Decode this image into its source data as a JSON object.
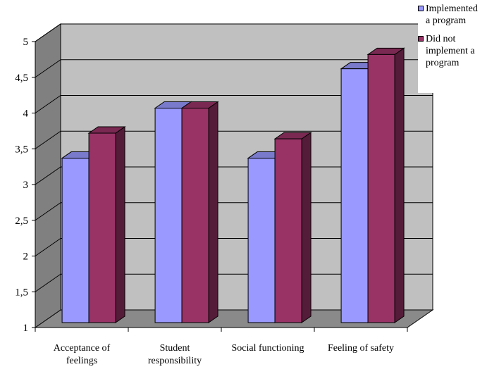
{
  "chart_data": {
    "type": "bar",
    "categories": [
      [
        "Acceptance of",
        "feelings"
      ],
      [
        "Student",
        "responsibility"
      ],
      [
        "Social functioning"
      ],
      [
        "Feeling of safety"
      ]
    ],
    "series": [
      {
        "name": "Implemented a program",
        "legend_lines": [
          "Implemented",
          "a program"
        ],
        "color": "#9999ff",
        "values": [
          3.3,
          4.0,
          3.3,
          4.55
        ]
      },
      {
        "name": "Did not implement a program",
        "legend_lines": [
          "Did not",
          "implement a",
          "program"
        ],
        "color": "#993366",
        "values": [
          3.65,
          4.0,
          3.57,
          4.75
        ]
      }
    ],
    "ylim": [
      1,
      5
    ],
    "yticks": [
      "1",
      "1,5",
      "2",
      "2,5",
      "3",
      "3,5",
      "4",
      "4,5",
      "5"
    ],
    "title": "",
    "xlabel": "",
    "ylabel": "",
    "grid": true,
    "legend_position": "top-right",
    "style": "3d-clustered-column"
  }
}
